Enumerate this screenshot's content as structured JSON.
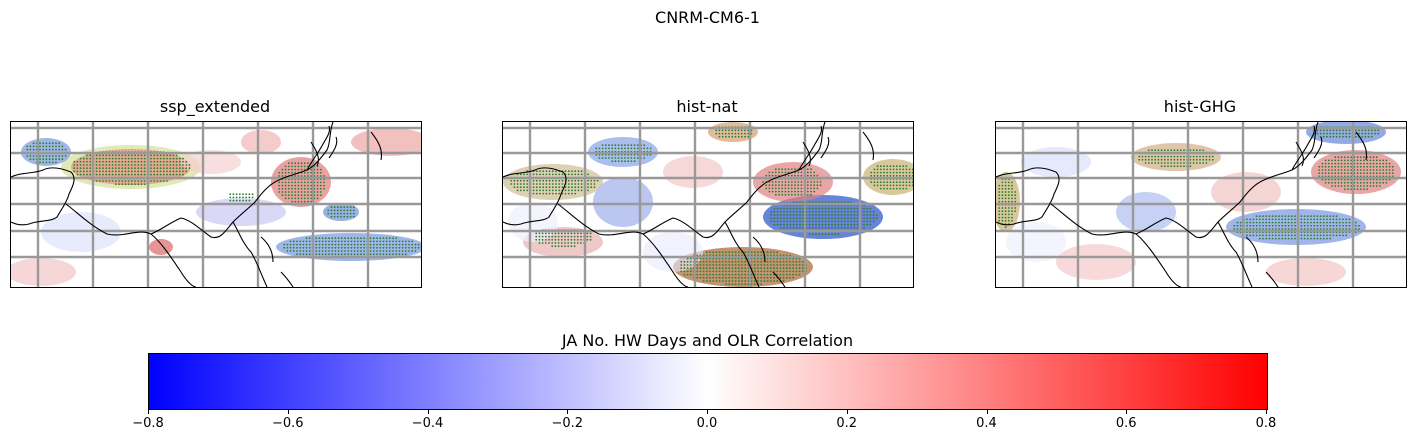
{
  "figure": {
    "suptitle": "CNRM-CM6-1"
  },
  "panels": [
    {
      "title": "ssp_extended"
    },
    {
      "title": "hist-nat"
    },
    {
      "title": "hist-GHG"
    }
  ],
  "colorbar": {
    "label": "JA No. HW Days and OLR Correlation",
    "vmin": -0.8,
    "vmax": 0.8,
    "ticks": [
      "−0.8",
      "−0.6",
      "−0.4",
      "−0.2",
      "0.0",
      "0.2",
      "0.4",
      "0.6",
      "0.8"
    ],
    "colors": {
      "low": "#0000ff",
      "mid": "#ffffff",
      "high": "#ff0000"
    }
  },
  "styles": {
    "gridline_color": "#999999",
    "coastline_color": "#000000",
    "stipple_color": "#2e7d32"
  }
}
